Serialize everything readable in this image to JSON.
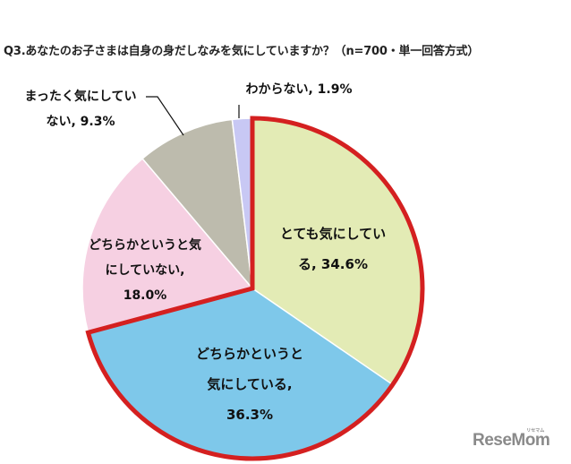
{
  "title": "Q3.あなたのお子さまは自身の身だしなみを気にしていますか？（n=700・単一回答方式）",
  "labels": {
    "very": {
      "line1": "とても気にしてい",
      "line2": "る, 34.6%"
    },
    "somewhat": {
      "line1": "どちらかというと",
      "line2": "気にしている,",
      "line3": "36.3%"
    },
    "somewhat_not": {
      "line1": "どちらかというと気",
      "line2": "にしていない,",
      "line3": "18.0%"
    },
    "not_at_all": {
      "line1": "まったく気にしてい",
      "line2": "ない, 9.3%"
    },
    "unknown": {
      "line1": "わからない, 1.9%"
    }
  },
  "logo": {
    "text": "ReseMom",
    "sub": "リセマム"
  },
  "chart_data": {
    "type": "pie",
    "title": "Q3.あなたのお子さまは自身の身だしなみを気にしていますか？（n=700・単一回答方式）",
    "categories": [
      "とても気にしている",
      "どちらかというと気にしている",
      "どちらかというと気にしていない",
      "まったく気にしていない",
      "わからない"
    ],
    "values": [
      34.6,
      36.3,
      18.0,
      9.3,
      1.9
    ],
    "colors": [
      "#e3ebb5",
      "#7ec8ea",
      "#f6d0e2",
      "#bdbbad",
      "#c8c8f4"
    ],
    "highlighted": [
      "とても気にしている",
      "どちらかというと気にしている"
    ],
    "highlight_color": "#d42020",
    "start_angle_deg": 0,
    "direction": "clockwise",
    "legend": "none",
    "n": 700
  }
}
